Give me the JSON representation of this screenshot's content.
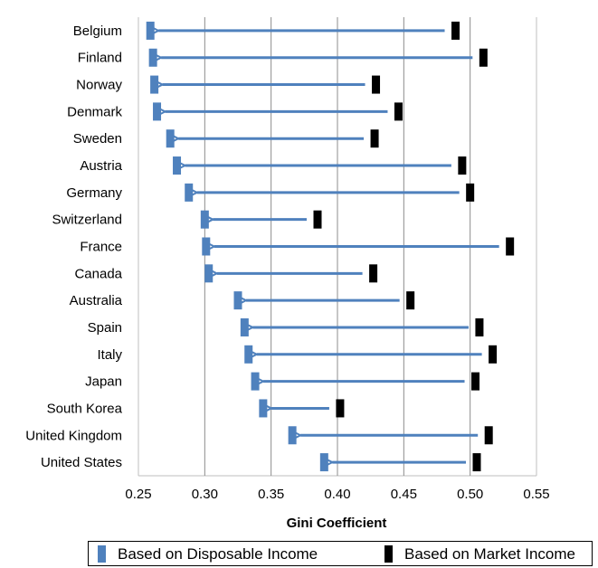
{
  "chart_data": {
    "type": "dumbbell",
    "categories": [
      "Belgium",
      "Finland",
      "Norway",
      "Denmark",
      "Sweden",
      "Austria",
      "Germany",
      "Switzerland",
      "France",
      "Canada",
      "Australia",
      "Spain",
      "Italy",
      "Japan",
      "South Korea",
      "United Kingdom",
      "United States"
    ],
    "series": [
      {
        "name": "Based on Disposable Income",
        "color": "#4f81bd",
        "values": [
          0.259,
          0.261,
          0.262,
          0.264,
          0.274,
          0.279,
          0.288,
          0.3,
          0.301,
          0.303,
          0.325,
          0.33,
          0.333,
          0.338,
          0.344,
          0.366,
          0.39
        ]
      },
      {
        "name": "Based on Market Income",
        "color": "#000000",
        "values": [
          0.489,
          0.51,
          0.429,
          0.446,
          0.428,
          0.494,
          0.5,
          0.385,
          0.53,
          0.427,
          0.455,
          0.507,
          0.517,
          0.504,
          0.402,
          0.514,
          0.505
        ]
      }
    ],
    "xlabel": "Gini Coefficient",
    "xlim": [
      0.25,
      0.55
    ],
    "xticks": [
      "0.25",
      "0.30",
      "0.35",
      "0.40",
      "0.45",
      "0.50",
      "0.55"
    ],
    "grid": "vertical",
    "legend": "bottom",
    "arrow_direction": "market-to-disposable"
  }
}
